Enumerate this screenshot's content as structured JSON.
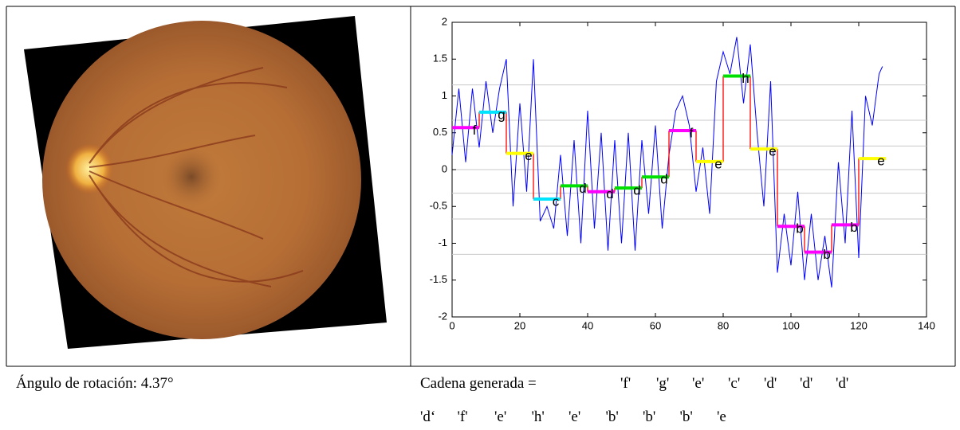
{
  "figure": {
    "left_caption": "Ángulo de rotación: 4.37°",
    "right_caption": {
      "label": "Cadena generada =",
      "symbols": [
        "'f'",
        "'g'",
        "'e'",
        "'c'",
        "'d'",
        "'d'",
        "'d'",
        "'d‘",
        "'f'",
        "'e'",
        "'h'",
        "'e'",
        "'b'",
        "'b'",
        "'b'",
        "'e"
      ]
    }
  },
  "chart_data": {
    "type": "line",
    "xlim": [
      0,
      140
    ],
    "ylim": [
      -2,
      2
    ],
    "xticks": [
      0,
      20,
      40,
      60,
      80,
      100,
      120,
      140
    ],
    "yticks": [
      -2,
      -1.5,
      -1,
      -0.5,
      0,
      0.5,
      1,
      1.5,
      2
    ],
    "breakpoints": [
      -1.15,
      -0.67,
      -0.32,
      0,
      0.32,
      0.67,
      1.15
    ],
    "breakpoint_color": "#c8c8c8",
    "step_line_color": "#ff0000",
    "series": [
      {
        "color": "#0000ff",
        "x": [
          0,
          2,
          4,
          6,
          8,
          10,
          12,
          14,
          16,
          18,
          20,
          22,
          24,
          26,
          28,
          30,
          32,
          34,
          36,
          38,
          40,
          42,
          44,
          46,
          48,
          50,
          52,
          54,
          56,
          58,
          60,
          62,
          64,
          66,
          68,
          70,
          72,
          74,
          76,
          78,
          80,
          82,
          84,
          86,
          88,
          90,
          92,
          94,
          96,
          98,
          100,
          102,
          104,
          106,
          108,
          110,
          112,
          114,
          116,
          118,
          120,
          122,
          124,
          126,
          127
        ],
        "values": [
          0.2,
          1.1,
          0.1,
          1.1,
          0.3,
          1.2,
          0.5,
          1.1,
          1.5,
          -0.5,
          0.9,
          -0.3,
          1.5,
          -0.7,
          -0.5,
          -0.8,
          0.2,
          -0.9,
          0.4,
          -1.0,
          0.8,
          -0.8,
          0.5,
          -1.1,
          0.4,
          -1.0,
          0.5,
          -1.1,
          0.4,
          -0.6,
          0.6,
          -0.8,
          0.2,
          0.8,
          1.0,
          0.6,
          -0.3,
          0.3,
          -0.6,
          1.2,
          1.6,
          1.3,
          1.8,
          0.9,
          1.7,
          0.5,
          -0.5,
          1.2,
          -1.4,
          -0.6,
          -1.3,
          -0.3,
          -1.5,
          -0.6,
          -1.5,
          -0.9,
          -1.6,
          0.1,
          -1.0,
          0.8,
          -1.2,
          1.0,
          0.6,
          1.3,
          1.4
        ]
      }
    ],
    "segments": [
      {
        "x": [
          0,
          8
        ],
        "value": 0.57,
        "label": "f",
        "color": "#ff00ff"
      },
      {
        "x": [
          8,
          16
        ],
        "value": 0.78,
        "label": "g",
        "color": "#00e5ff"
      },
      {
        "x": [
          16,
          24
        ],
        "value": 0.22,
        "label": "e",
        "color": "#ffff00"
      },
      {
        "x": [
          24,
          32
        ],
        "value": -0.4,
        "label": "c",
        "color": "#00e5ff"
      },
      {
        "x": [
          32,
          40
        ],
        "value": -0.22,
        "label": "d",
        "color": "#00e000"
      },
      {
        "x": [
          40,
          48
        ],
        "value": -0.3,
        "label": "d",
        "color": "#ff00ff"
      },
      {
        "x": [
          48,
          56
        ],
        "value": -0.25,
        "label": "d",
        "color": "#00e000"
      },
      {
        "x": [
          56,
          64
        ],
        "value": -0.1,
        "label": "d",
        "color": "#00e000"
      },
      {
        "x": [
          64,
          72
        ],
        "value": 0.53,
        "label": "f",
        "color": "#ff00ff"
      },
      {
        "x": [
          72,
          80
        ],
        "value": 0.11,
        "label": "e",
        "color": "#ffff00"
      },
      {
        "x": [
          80,
          88
        ],
        "value": 1.27,
        "label": "h",
        "color": "#00e000"
      },
      {
        "x": [
          88,
          96
        ],
        "value": 0.28,
        "label": "e",
        "color": "#ffff00"
      },
      {
        "x": [
          96,
          104
        ],
        "value": -0.77,
        "label": "b",
        "color": "#ff00ff"
      },
      {
        "x": [
          104,
          112
        ],
        "value": -1.12,
        "label": "b",
        "color": "#ff00ff"
      },
      {
        "x": [
          112,
          120
        ],
        "value": -0.75,
        "label": "b",
        "color": "#ff00ff"
      },
      {
        "x": [
          120,
          128
        ],
        "value": 0.15,
        "label": "e",
        "color": "#ffff00"
      }
    ]
  }
}
